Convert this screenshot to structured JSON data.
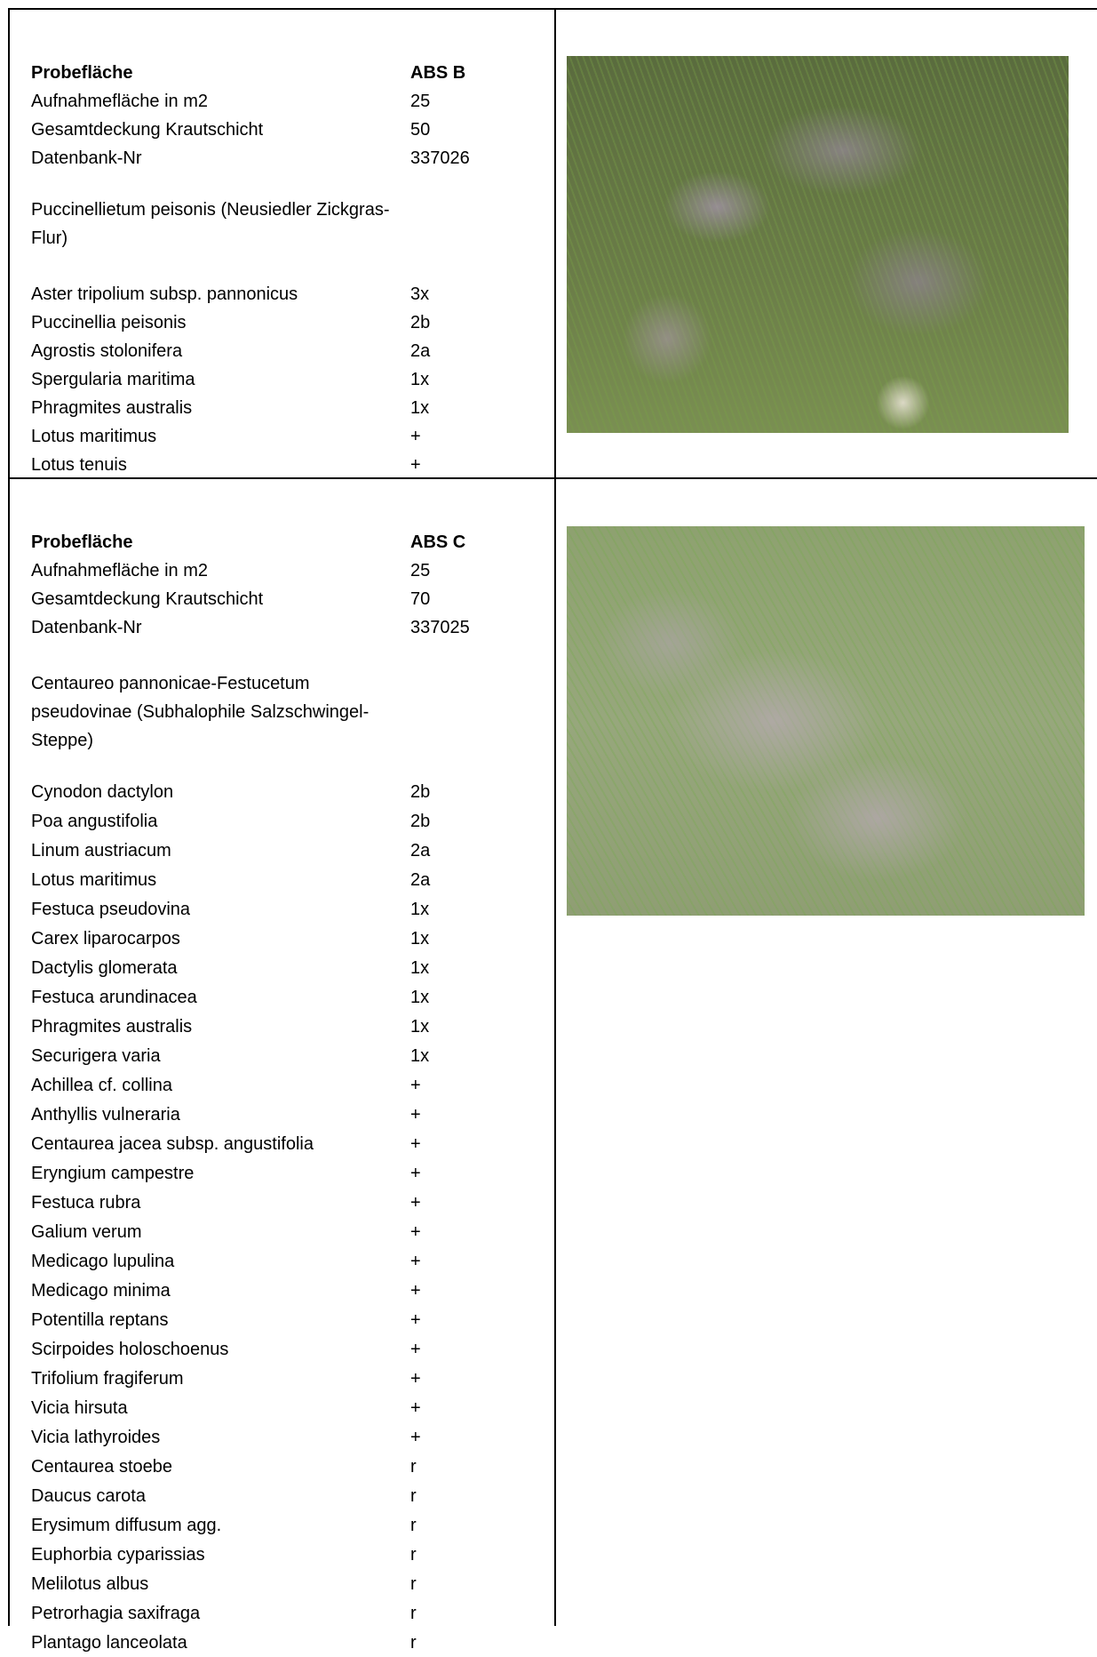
{
  "sections": [
    {
      "info": [
        [
          "Probefläche",
          "ABS B"
        ],
        [
          "Aufnahmefläche in m2",
          "25"
        ],
        [
          "Gesamtdeckung Krautschicht",
          "50"
        ],
        [
          "Datenbank-Nr",
          "337026"
        ]
      ],
      "community": "Puccinellietum peisonis (Neusiedler Zickgras-Flur)",
      "species": [
        [
          "Aster tripolium subsp. pannonicus",
          "3x"
        ],
        [
          "Puccinellia peisonis",
          "2b"
        ],
        [
          "Agrostis stolonifera",
          "2a"
        ],
        [
          "Spergularia maritima",
          "1x"
        ],
        [
          "Phragmites australis",
          "1x"
        ],
        [
          "Lotus maritimus",
          "+"
        ],
        [
          "Lotus tenuis",
          "+"
        ]
      ]
    },
    {
      "info": [
        [
          "Probefläche",
          "ABS C"
        ],
        [
          "Aufnahmefläche in m2",
          "25"
        ],
        [
          "Gesamtdeckung Krautschicht",
          "70"
        ],
        [
          "Datenbank-Nr",
          "337025"
        ]
      ],
      "community": "Centaureo pannonicae-Festucetum pseudovinae (Subhalophile Salzschwingel-Steppe)",
      "species": [
        [
          "Cynodon dactylon",
          "2b"
        ],
        [
          "Poa angustifolia",
          "2b"
        ],
        [
          "Linum austriacum",
          "2a"
        ],
        [
          "Lotus maritimus",
          "2a"
        ],
        [
          "Festuca pseudovina",
          "1x"
        ],
        [
          "Carex liparocarpos",
          "1x"
        ],
        [
          "Dactylis glomerata",
          "1x"
        ],
        [
          "Festuca arundinacea",
          "1x"
        ],
        [
          "Phragmites australis",
          "1x"
        ],
        [
          "Securigera varia",
          "1x"
        ],
        [
          "Achillea cf. collina",
          "+"
        ],
        [
          "Anthyllis vulneraria",
          "+"
        ],
        [
          "Centaurea jacea subsp. angustifolia",
          "+"
        ],
        [
          "Eryngium campestre",
          "+"
        ],
        [
          "Festuca rubra",
          "+"
        ],
        [
          "Galium verum",
          "+"
        ],
        [
          "Medicago lupulina",
          "+"
        ],
        [
          "Medicago minima",
          "+"
        ],
        [
          "Potentilla reptans",
          "+"
        ],
        [
          "Scirpoides holoschoenus",
          "+"
        ],
        [
          "Trifolium fragiferum",
          "+"
        ],
        [
          "Vicia hirsuta",
          "+"
        ],
        [
          "Vicia lathyroides",
          "+"
        ],
        [
          "Centaurea stoebe",
          "r"
        ],
        [
          "Daucus carota",
          "r"
        ],
        [
          "Erysimum diffusum agg.",
          "r"
        ],
        [
          "Euphorbia cyparissias",
          "r"
        ],
        [
          "Melilotus albus",
          "r"
        ],
        [
          "Petrorhagia saxifraga",
          "r"
        ],
        [
          "Plantago lanceolata",
          "r"
        ]
      ]
    }
  ]
}
